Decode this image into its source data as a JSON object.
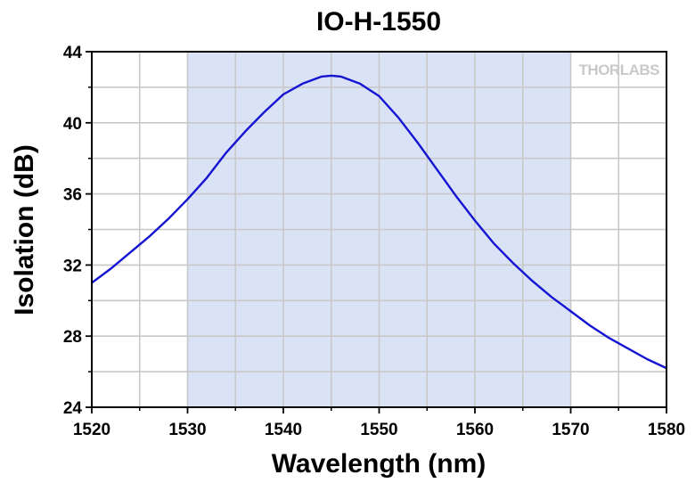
{
  "chart_data": {
    "type": "line",
    "title": "IO-H-1550",
    "xlabel": "Wavelength (nm)",
    "ylabel": "Isolation (dB)",
    "xlim": [
      1520,
      1580
    ],
    "ylim": [
      24,
      44
    ],
    "x_ticks": [
      1520,
      1530,
      1540,
      1550,
      1560,
      1570,
      1580
    ],
    "y_ticks": [
      24,
      28,
      32,
      36,
      40,
      44
    ],
    "grid": true,
    "shaded_band": {
      "x_range": [
        1530,
        1570
      ],
      "color": "#dae3f6"
    },
    "series": [
      {
        "color": "#1414d2",
        "x": [
          1520,
          1522,
          1524,
          1526,
          1528,
          1530,
          1532,
          1534,
          1536,
          1538,
          1540,
          1542,
          1544,
          1545,
          1546,
          1548,
          1550,
          1552,
          1554,
          1556,
          1558,
          1560,
          1562,
          1564,
          1566,
          1568,
          1570,
          1572,
          1574,
          1576,
          1578,
          1580
        ],
        "y": [
          31.0,
          31.8,
          32.7,
          33.6,
          34.6,
          35.7,
          36.9,
          38.3,
          39.5,
          40.6,
          41.6,
          42.2,
          42.6,
          42.65,
          42.6,
          42.2,
          41.5,
          40.3,
          38.9,
          37.4,
          35.9,
          34.5,
          33.2,
          32.1,
          31.1,
          30.2,
          29.4,
          28.6,
          27.9,
          27.3,
          26.7,
          26.2
        ]
      }
    ]
  },
  "logo": {
    "text": "THORLABS",
    "color": "#c9c9c9"
  }
}
